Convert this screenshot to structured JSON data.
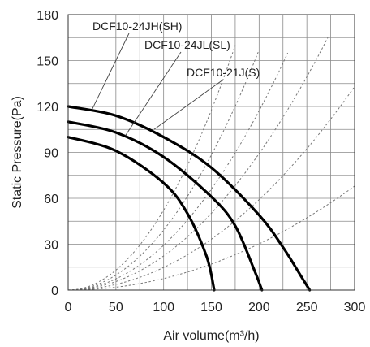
{
  "chart_data": {
    "type": "line",
    "xlabel": "Air volume(m³/h)",
    "ylabel": "Static Pressure(Pa)",
    "xlim": [
      0,
      300
    ],
    "ylim": [
      0,
      180
    ],
    "x_ticks": [
      0,
      50,
      100,
      150,
      200,
      250,
      300
    ],
    "y_ticks": [
      0,
      30,
      60,
      90,
      120,
      150,
      180
    ],
    "grid": true,
    "series": [
      {
        "name": "DCF10-24JH(SH)",
        "x": [
          0,
          50,
          100,
          150,
          200,
          225,
          245,
          253
        ],
        "y": [
          120,
          114,
          100,
          80,
          49,
          28,
          8,
          0
        ]
      },
      {
        "name": "DCF10-24JL(SL)",
        "x": [
          0,
          50,
          100,
          150,
          175,
          195,
          203
        ],
        "y": [
          110,
          103,
          87,
          61,
          42,
          13,
          0
        ]
      },
      {
        "name": "DCF10-21J(S)",
        "x": [
          0,
          50,
          100,
          125,
          145,
          153
        ],
        "y": [
          100,
          91,
          70,
          50,
          22,
          0
        ]
      }
    ],
    "system_curves": {
      "style": "dashed",
      "end_points": [
        [
          175,
          160
        ],
        [
          200,
          157
        ],
        [
          230,
          155
        ],
        [
          272,
          165
        ],
        [
          300,
          133
        ],
        [
          300,
          68
        ]
      ]
    },
    "annotations": [
      {
        "text": "DCF10-24JH(SH)",
        "series": "DCF10-24JH(SH)",
        "pointer_to": [
          25,
          118
        ]
      },
      {
        "text": "DCF10-24JL(SL)",
        "series": "DCF10-24JL(SL)",
        "pointer_to": [
          60,
          101
        ]
      },
      {
        "text": "DCF10-21J(S)",
        "series": "DCF10-21J(S)",
        "pointer_to": [
          90,
          105
        ]
      }
    ],
    "colors": {
      "curve": "#000000",
      "grid": "#8a8a8a",
      "system_curve": "#777777"
    }
  }
}
